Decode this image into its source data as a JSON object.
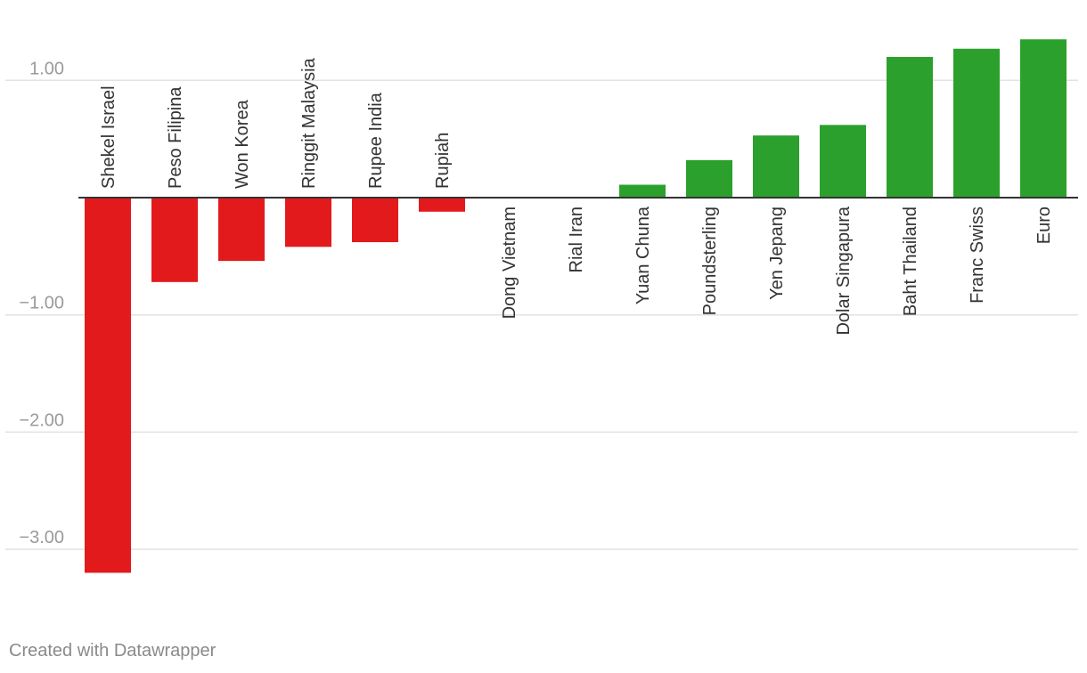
{
  "chart_data": {
    "type": "bar",
    "categories": [
      "Shekel Israel",
      "Peso Filipina",
      "Won Korea",
      "Ringgit Malaysia",
      "Rupee India",
      "Rupiah",
      "Dong Vietnam",
      "Rial Iran",
      "Yuan Chuna",
      "Poundsterling",
      "Yen Jepang",
      "Dolar Singapura",
      "Baht Thailand",
      "Franc Swiss",
      "Euro"
    ],
    "values": [
      -3.2,
      -0.72,
      -0.54,
      -0.42,
      -0.38,
      -0.12,
      0.0,
      0.0,
      0.11,
      0.32,
      0.53,
      0.62,
      1.2,
      1.27,
      1.35
    ],
    "yticks": [
      1.0,
      -1.0,
      -2.0,
      -3.0
    ],
    "ytick_labels": [
      "1.00",
      "−1.00",
      "−2.00",
      "−3.00"
    ],
    "ylim": [
      -3.2,
      1.35
    ],
    "grid": true,
    "colors": {
      "negative": "#e31a1c",
      "positive": "#2ca02c",
      "grid": "#e2e2e2",
      "baseline": "#333333"
    }
  },
  "footer": {
    "credit": "Created with Datawrapper"
  }
}
